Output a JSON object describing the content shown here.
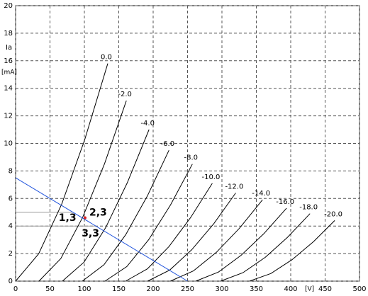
{
  "chart_data": {
    "type": "line",
    "x_label": "[V]",
    "y_label": "Ia",
    "y_unit": "[mA]",
    "xlim": [
      0,
      500
    ],
    "ylim": [
      0,
      20
    ],
    "xticks": [
      0,
      50,
      100,
      150,
      200,
      250,
      300,
      350,
      400,
      450,
      500
    ],
    "yticks": [
      0,
      2,
      4,
      6,
      8,
      10,
      12,
      14,
      16,
      18,
      20
    ],
    "grid": true,
    "series": [
      {
        "name": "0.0",
        "color": "#000000",
        "x": [
          0,
          33.5,
          67,
          100.5,
          134
        ],
        "values": [
          0,
          1.98,
          5.59,
          10.27,
          15.8
        ]
      },
      {
        "name": "-2.0",
        "color": "#000000",
        "x": [
          34,
          65.8,
          97.5,
          129.3,
          161
        ],
        "values": [
          0,
          1.64,
          4.64,
          8.52,
          13.1
        ]
      },
      {
        "name": "-4.0",
        "color": "#000000",
        "x": [
          68,
          99.5,
          131,
          162.5,
          194
        ],
        "values": [
          0,
          1.38,
          3.89,
          7.15,
          11.0
        ]
      },
      {
        "name": "-6.0",
        "color": "#000000",
        "x": [
          97,
          128.5,
          160,
          191.5,
          223
        ],
        "values": [
          0,
          1.19,
          3.36,
          6.18,
          9.5
        ]
      },
      {
        "name": "-8.0",
        "color": "#000000",
        "x": [
          130,
          161.8,
          193.5,
          225.3,
          257
        ],
        "values": [
          0,
          1.06,
          3.01,
          5.53,
          8.5
        ]
      },
      {
        "name": "-10.0",
        "color": "#000000",
        "x": [
          160,
          191.5,
          223,
          254.5,
          286
        ],
        "values": [
          0,
          0.89,
          2.51,
          4.62,
          7.1
        ]
      },
      {
        "name": "-12.0",
        "color": "#000000",
        "x": [
          192,
          224,
          256,
          288,
          320
        ],
        "values": [
          0,
          0.8,
          2.27,
          4.16,
          6.4
        ]
      },
      {
        "name": "-14.0",
        "color": "#000000",
        "x": [
          225,
          258.5,
          292,
          325.5,
          359
        ],
        "values": [
          0,
          0.74,
          2.09,
          3.84,
          5.9
        ]
      },
      {
        "name": "-16.0",
        "color": "#000000",
        "x": [
          262,
          295,
          328,
          361,
          394
        ],
        "values": [
          0,
          0.66,
          1.88,
          3.45,
          5.3
        ]
      },
      {
        "name": "-18.0",
        "color": "#000000",
        "x": [
          298,
          330.5,
          363,
          395.5,
          428
        ],
        "values": [
          0,
          0.61,
          1.73,
          3.19,
          4.9
        ]
      },
      {
        "name": "-20.0",
        "color": "#000000",
        "x": [
          340,
          371,
          402,
          433,
          464
        ],
        "values": [
          0,
          0.55,
          1.56,
          2.86,
          4.4
        ]
      }
    ],
    "load_line": {
      "color": "#2255dd",
      "x": [
        0,
        250
      ],
      "values": [
        7.5,
        0
      ]
    },
    "reference_lines": [
      {
        "label": "1,3",
        "color": "#22aa22",
        "line_color": "#999999",
        "y": 5,
        "x_end": 83.3
      },
      {
        "label": "3,3",
        "color": "#22aa22",
        "line_color": "#999999",
        "y": 4,
        "x_end": 116.7
      }
    ],
    "operating_point": {
      "label": "2,3",
      "color": "#dd2222",
      "x": 101,
      "y": 4.6
    }
  }
}
